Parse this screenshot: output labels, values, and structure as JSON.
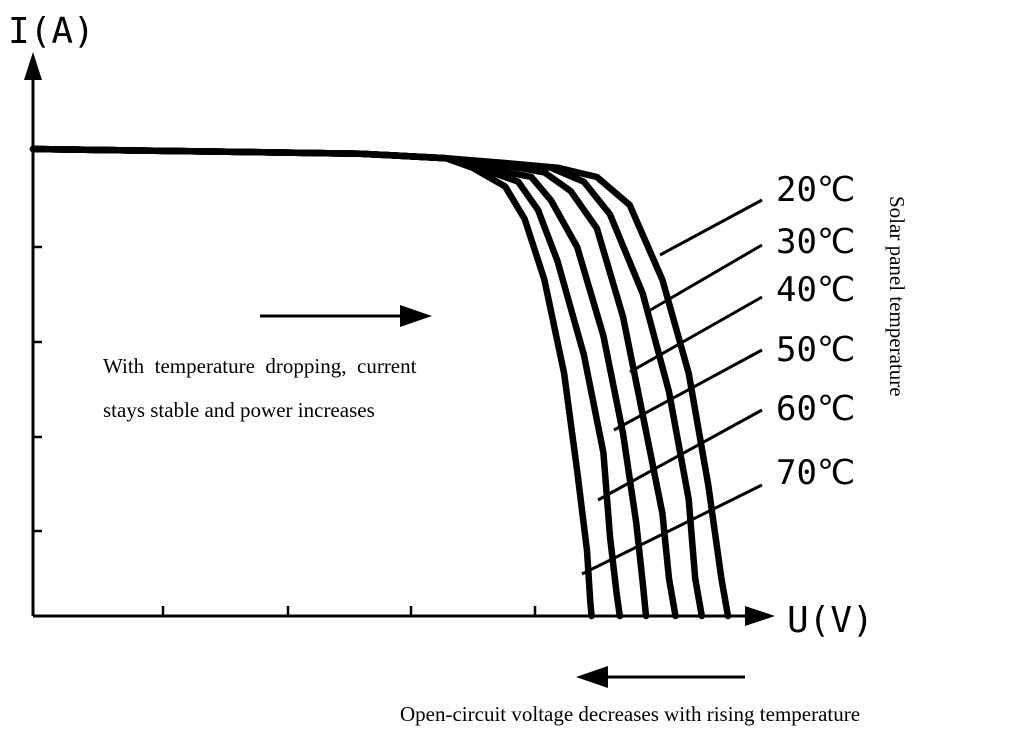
{
  "chart_data": {
    "type": "line",
    "title": "",
    "xlabel": "U(V)",
    "ylabel": "I(A)",
    "legend_title": "Solar panel temperature",
    "series": [
      {
        "name": "20℃",
        "points": [
          [
            0,
            100
          ],
          [
            50,
            99
          ],
          [
            63,
            98
          ],
          [
            72,
            97
          ],
          [
            80,
            96
          ],
          [
            86,
            94
          ],
          [
            91,
            88
          ],
          [
            96,
            72
          ],
          [
            100,
            52
          ],
          [
            103,
            28
          ],
          [
            105,
            8
          ],
          [
            106,
            0
          ]
        ]
      },
      {
        "name": "30℃",
        "points": [
          [
            0,
            100
          ],
          [
            50,
            99
          ],
          [
            63,
            98
          ],
          [
            71,
            97
          ],
          [
            79,
            96
          ],
          [
            84,
            93
          ],
          [
            88,
            86
          ],
          [
            93,
            69
          ],
          [
            97,
            48
          ],
          [
            100,
            25
          ],
          [
            101,
            8
          ],
          [
            102,
            0
          ]
        ]
      },
      {
        "name": "40℃",
        "points": [
          [
            0,
            100
          ],
          [
            50,
            99
          ],
          [
            63,
            98
          ],
          [
            70,
            97
          ],
          [
            78,
            95
          ],
          [
            82,
            91
          ],
          [
            86,
            83
          ],
          [
            90,
            64
          ],
          [
            93,
            43
          ],
          [
            96,
            22
          ],
          [
            97,
            8
          ],
          [
            98,
            0
          ]
        ]
      },
      {
        "name": "50℃",
        "points": [
          [
            0,
            100
          ],
          [
            50,
            99
          ],
          [
            63,
            98
          ],
          [
            69,
            96
          ],
          [
            76,
            94
          ],
          [
            79,
            89
          ],
          [
            83,
            79
          ],
          [
            87,
            60
          ],
          [
            90,
            39
          ],
          [
            92,
            20
          ],
          [
            93,
            7
          ],
          [
            93.5,
            0
          ]
        ]
      },
      {
        "name": "60℃",
        "points": [
          [
            0,
            100
          ],
          [
            50,
            99
          ],
          [
            63,
            98
          ],
          [
            68,
            96
          ],
          [
            74,
            93
          ],
          [
            77,
            87
          ],
          [
            80,
            76
          ],
          [
            84,
            56
          ],
          [
            87,
            35
          ],
          [
            88,
            17
          ],
          [
            89,
            5
          ],
          [
            89.5,
            0
          ]
        ]
      },
      {
        "name": "70℃",
        "points": [
          [
            0,
            100
          ],
          [
            50,
            99
          ],
          [
            63,
            98
          ],
          [
            67,
            96
          ],
          [
            72,
            92
          ],
          [
            75,
            85
          ],
          [
            78,
            72
          ],
          [
            81,
            52
          ],
          [
            83,
            31
          ],
          [
            84.5,
            14
          ],
          [
            85,
            3
          ],
          [
            85.2,
            0
          ]
        ]
      }
    ],
    "xlim": [
      0,
      106
    ],
    "ylim": [
      0,
      100
    ],
    "grid": false,
    "annotations": [
      {
        "text_lines": [
          "With  temperature  dropping,  current",
          "stays stable and power increases"
        ],
        "arrow": "right"
      },
      {
        "text": "Open-circuit voltage decreases with rising temperature",
        "arrow": "left"
      }
    ]
  }
}
